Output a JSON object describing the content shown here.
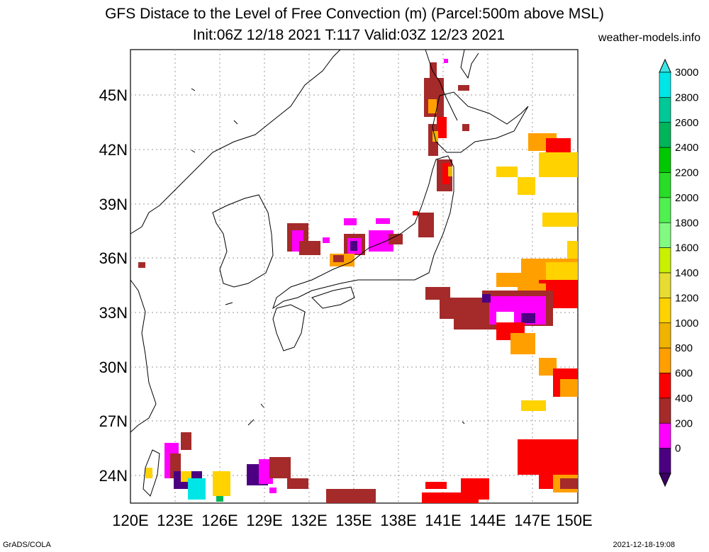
{
  "title_line1": "GFS Distace to the Level of Free Convection (m) (Parcel:500m above MSL)",
  "title_line2": "Init:06Z 12/18 2021 T:117 Valid:03Z 12/23 2021",
  "site": "weather-models.info",
  "footer_left": "GrADS/COLA",
  "footer_right": "2021-12-18-19:08",
  "lat_labels": [
    "45N",
    "42N",
    "39N",
    "36N",
    "33N",
    "30N",
    "27N",
    "24N"
  ],
  "lon_labels": [
    "120E",
    "123E",
    "126E",
    "129E",
    "132E",
    "135E",
    "138E",
    "141E",
    "144E",
    "147E",
    "150E"
  ],
  "colorbar": {
    "labels": [
      "3000",
      "2800",
      "2600",
      "2400",
      "2200",
      "2000",
      "1800",
      "1600",
      "1400",
      "1200",
      "1000",
      "800",
      "600",
      "400",
      "200",
      "0"
    ],
    "colors": [
      "#00e6e6",
      "#00c896",
      "#00b45a",
      "#00c800",
      "#28dc28",
      "#50f050",
      "#82fa82",
      "#c8f000",
      "#e6dc32",
      "#ffd200",
      "#f0b400",
      "#ffa000",
      "#fa0000",
      "#a52a2a",
      "#ff00ff",
      "#4b0082"
    ],
    "over_color": "#3ce6e6",
    "under_color": "#3c0064"
  }
}
